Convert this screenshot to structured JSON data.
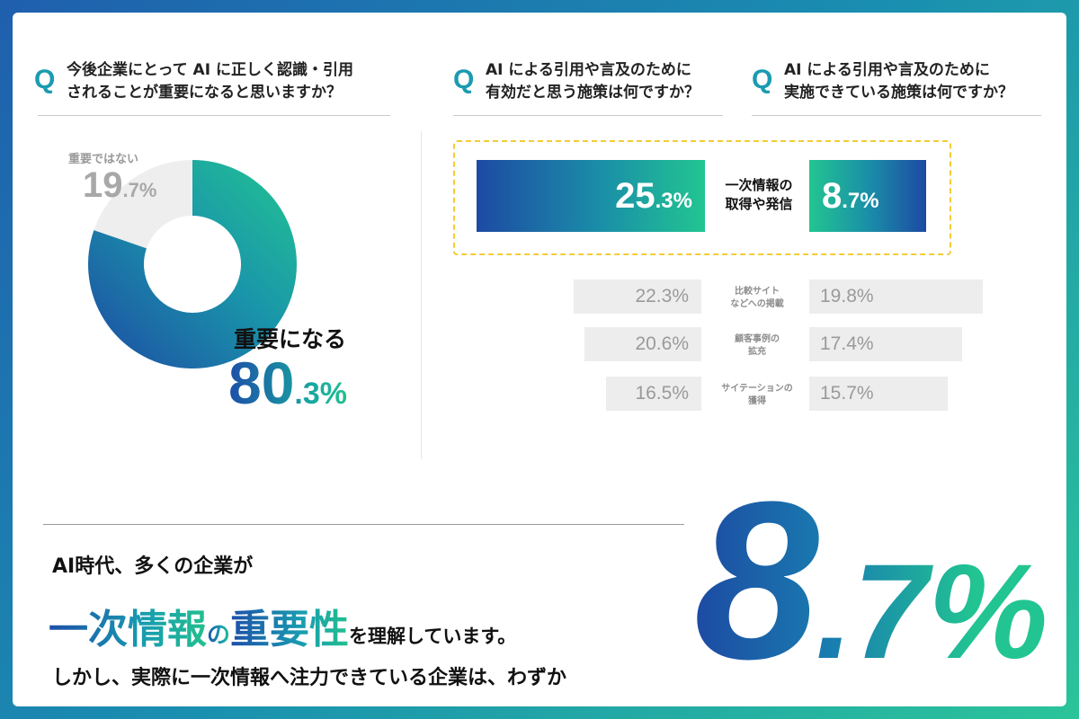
{
  "q1": {
    "mark": "Q",
    "line1": "今後企業にとって AI に正しく認識・引用",
    "line2": "されることが重要になると思いますか？"
  },
  "q2": {
    "mark": "Q",
    "line1": "AI による引用や言及のために",
    "line2": "有効だと思う施策は何ですか？"
  },
  "q3": {
    "mark": "Q",
    "line1": "AI による引用や言及のために",
    "line2": "実施できている施策は何ですか？"
  },
  "donut": {
    "important_label": "重要になる",
    "important_int": "80",
    "important_dec": ".3%",
    "not_label": "重要ではない",
    "not_int": "19",
    "not_dec": ".7%"
  },
  "highlight": {
    "label1": "一次情報の",
    "label2": "取得や発信",
    "left_int": "25",
    "left_dec": ".3%",
    "right_int": "8",
    "right_dec": ".7%"
  },
  "rows": [
    {
      "label1": "比較サイト",
      "label2": "などへの掲載",
      "left": "22.3%",
      "right": "19.8%"
    },
    {
      "label1": "顧客事例の",
      "label2": "拡充",
      "left": "20.6%",
      "right": "17.4%"
    },
    {
      "label1": "サイテーションの",
      "label2": "獲得",
      "left": "16.5%",
      "right": "15.7%"
    }
  ],
  "bottom": {
    "line1": "AI時代、多くの企業が",
    "em1": "一次情報",
    "no": "の",
    "em2": "重要性",
    "rest": "を理解しています。",
    "line3": "しかし、実際に一次情報へ注力できている企業は、わずか",
    "big_int": "8",
    "big_dec": ".7%"
  },
  "colors": {
    "teal": "#1a9bb0",
    "blue": "#1d4aa3",
    "green": "#22c591",
    "gray": "#ededed",
    "dash": "#f2cc34"
  },
  "chart_data": [
    {
      "type": "pie",
      "categories": [
        "重要になる",
        "重要ではない"
      ],
      "values": [
        80.3,
        19.7
      ]
    },
    {
      "type": "bar",
      "categories": [
        "一次情報の取得や発信",
        "比較サイトなどへの掲載",
        "顧客事例の拡充",
        "サイテーションの獲得"
      ],
      "series": [
        {
          "name": "",
          "values": [
            25.3,
            22.3,
            20.6,
            16.5
          ]
        },
        {
          "name": "",
          "values": [
            8.7,
            19.8,
            17.4,
            15.7
          ]
        }
      ]
    }
  ]
}
